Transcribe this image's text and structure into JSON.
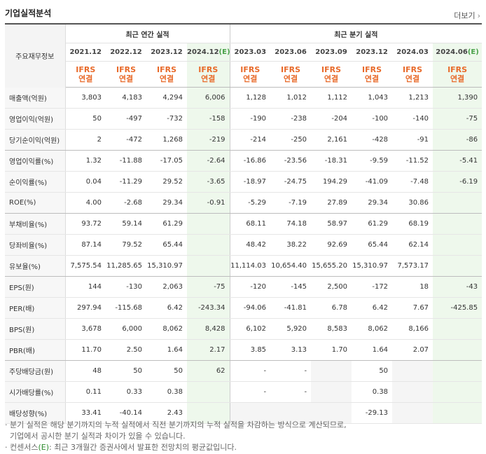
{
  "section_title": "기업실적분석",
  "more_label": "더보기",
  "corner_label": "주요재무정보",
  "groups": {
    "annual": "최근 연간 실적",
    "quarter": "최근 분기 실적"
  },
  "columns": [
    {
      "period": "2021.12",
      "base": "",
      "est": false
    },
    {
      "period": "2022.12",
      "base": "",
      "est": false
    },
    {
      "period": "2023.12",
      "base": "",
      "est": false
    },
    {
      "period": "2024.12",
      "base": "(E)",
      "est": true
    },
    {
      "period": "2023.03",
      "base": "",
      "est": false
    },
    {
      "period": "2023.06",
      "base": "",
      "est": false
    },
    {
      "period": "2023.09",
      "base": "",
      "est": false
    },
    {
      "period": "2023.12",
      "base": "",
      "est": false
    },
    {
      "period": "2024.03",
      "base": "",
      "est": false
    },
    {
      "period": "2024.06",
      "base": "(E)",
      "est": true
    }
  ],
  "ifrs_line1": "IFRS",
  "ifrs_line2": "연결",
  "rows": [
    {
      "label": "매출액(억원)",
      "values": [
        "3,803",
        "4,183",
        "4,294",
        "6,006",
        "1,128",
        "1,012",
        "1,112",
        "1,043",
        "1,213",
        "1,390"
      ]
    },
    {
      "label": "영업이익(억원)",
      "values": [
        "50",
        "-497",
        "-732",
        "-158",
        "-190",
        "-238",
        "-204",
        "-100",
        "-140",
        "-75"
      ]
    },
    {
      "label": "당기순이익(억원)",
      "values": [
        "2",
        "-472",
        "1,268",
        "-219",
        "-214",
        "-250",
        "2,161",
        "-428",
        "-91",
        "-86"
      ],
      "gap": true
    },
    {
      "label": "영업이익률(%)",
      "values": [
        "1.32",
        "-11.88",
        "-17.05",
        "-2.64",
        "-16.86",
        "-23.56",
        "-18.31",
        "-9.59",
        "-11.52",
        "-5.41"
      ]
    },
    {
      "label": "순이익률(%)",
      "values": [
        "0.04",
        "-11.29",
        "29.52",
        "-3.65",
        "-18.97",
        "-24.75",
        "194.29",
        "-41.09",
        "-7.48",
        "-6.19"
      ]
    },
    {
      "label": "ROE(%)",
      "values": [
        "4.00",
        "-2.68",
        "29.34",
        "-0.91",
        "-5.29",
        "-7.19",
        "27.89",
        "29.34",
        "30.86",
        ""
      ],
      "gap": true
    },
    {
      "label": "부채비율(%)",
      "values": [
        "93.72",
        "59.14",
        "61.29",
        "",
        "68.11",
        "74.18",
        "58.97",
        "61.29",
        "68.19",
        ""
      ]
    },
    {
      "label": "당좌비율(%)",
      "values": [
        "87.14",
        "79.52",
        "65.44",
        "",
        "48.42",
        "38.22",
        "92.69",
        "65.44",
        "62.14",
        ""
      ]
    },
    {
      "label": "유보율(%)",
      "values": [
        "7,575.54",
        "11,285.65",
        "15,310.97",
        "",
        "11,114.03",
        "10,654.40",
        "15,655.20",
        "15,310.97",
        "7,573.17",
        ""
      ],
      "gap": true
    },
    {
      "label": "EPS(원)",
      "values": [
        "144",
        "-130",
        "2,063",
        "-75",
        "-120",
        "-145",
        "2,500",
        "-172",
        "18",
        "-43"
      ]
    },
    {
      "label": "PER(배)",
      "values": [
        "297.94",
        "-115.68",
        "6.42",
        "-243.34",
        "-94.06",
        "-41.81",
        "6.78",
        "6.42",
        "7.67",
        "-425.85"
      ]
    },
    {
      "label": "BPS(원)",
      "values": [
        "3,678",
        "6,000",
        "8,062",
        "8,428",
        "6,102",
        "5,920",
        "8,583",
        "8,062",
        "8,166",
        ""
      ]
    },
    {
      "label": "PBR(배)",
      "values": [
        "11.70",
        "2.50",
        "1.64",
        "2.17",
        "3.85",
        "3.13",
        "1.70",
        "1.64",
        "2.07",
        ""
      ],
      "gap": true
    },
    {
      "label": "주당배당금(원)",
      "values": [
        "48",
        "50",
        "50",
        "62",
        "-",
        "-",
        "",
        "50",
        "",
        ""
      ]
    },
    {
      "label": "시가배당률(%)",
      "values": [
        "0.11",
        "0.33",
        "0.38",
        "",
        "-",
        "-",
        "",
        "0.38",
        "",
        ""
      ]
    },
    {
      "label": "배당성향(%)",
      "values": [
        "33.41",
        "-40.14",
        "2.43",
        "",
        "",
        "",
        "",
        "-29.13",
        "",
        ""
      ]
    }
  ],
  "notes": {
    "line1": "분기 실적은 해당 분기까지의 누적 실적에서 직전 분기까지의 누적 실적을 차감하는 방식으로 계산되므로,",
    "line2": "기업에서 공시한 분기 실적과 차이가 있을 수 있습니다.",
    "line3_prefix": "컨센서스",
    "line3_e": "(E)",
    "line3_rest": ": 최근 3개월간 증권사에서 발표한 전망치의 평균값입니다."
  }
}
